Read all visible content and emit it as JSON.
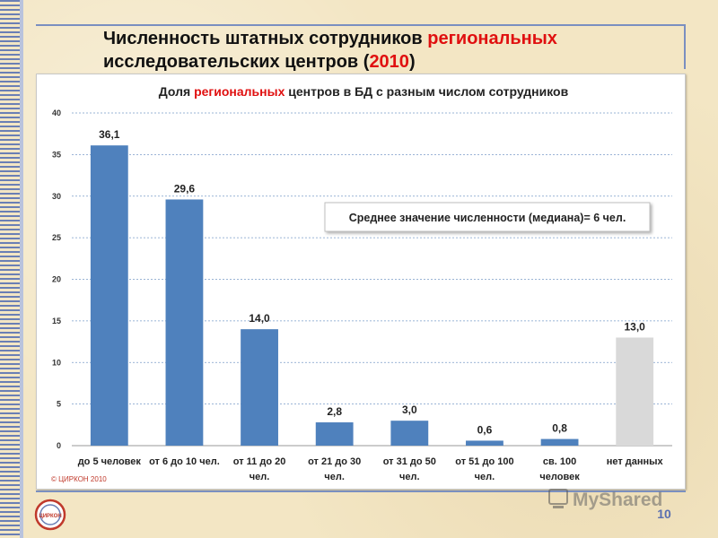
{
  "slide": {
    "title_part1": "Численность штатных сотрудников ",
    "title_accent1": "региональных",
    "title_part2": "исследовательских центров (",
    "title_accent2": "2010",
    "title_part3": ")",
    "page_number": "10",
    "logo_text": "ЦИРКОН",
    "watermark_text": "MyShared"
  },
  "colors": {
    "bar_primary": "#4f81bd",
    "bar_no_data": "#d9d9d9",
    "accent": "#e01010"
  },
  "chart_data": {
    "type": "bar",
    "title_part1": "Доля ",
    "title_accent": "региональных",
    "title_part2": " центров в БД с разным числом сотрудников",
    "categories": [
      [
        "до 5 человек"
      ],
      [
        "от 6 до 10 чел."
      ],
      [
        "от 11 до 20",
        "чел."
      ],
      [
        "от 21 до 30",
        "чел."
      ],
      [
        "от 31 до 50",
        "чел."
      ],
      [
        "от 51 до 100",
        "чел."
      ],
      [
        "св. 100",
        "человек"
      ],
      [
        "нет данных"
      ]
    ],
    "values": [
      36.1,
      29.6,
      14.0,
      2.8,
      3.0,
      0.6,
      0.8,
      13.0
    ],
    "value_labels": [
      "36,1",
      "29,6",
      "14,0",
      "2,8",
      "3,0",
      "0,6",
      "0,8",
      "13,0"
    ],
    "ylim": [
      0,
      40
    ],
    "yticks": [
      0,
      5,
      10,
      15,
      20,
      25,
      30,
      35,
      40
    ],
    "grid": true,
    "annotation": "Среднее значение численности (медиана)= 6 чел.",
    "copyright": "© ЦИРКОН 2010"
  }
}
